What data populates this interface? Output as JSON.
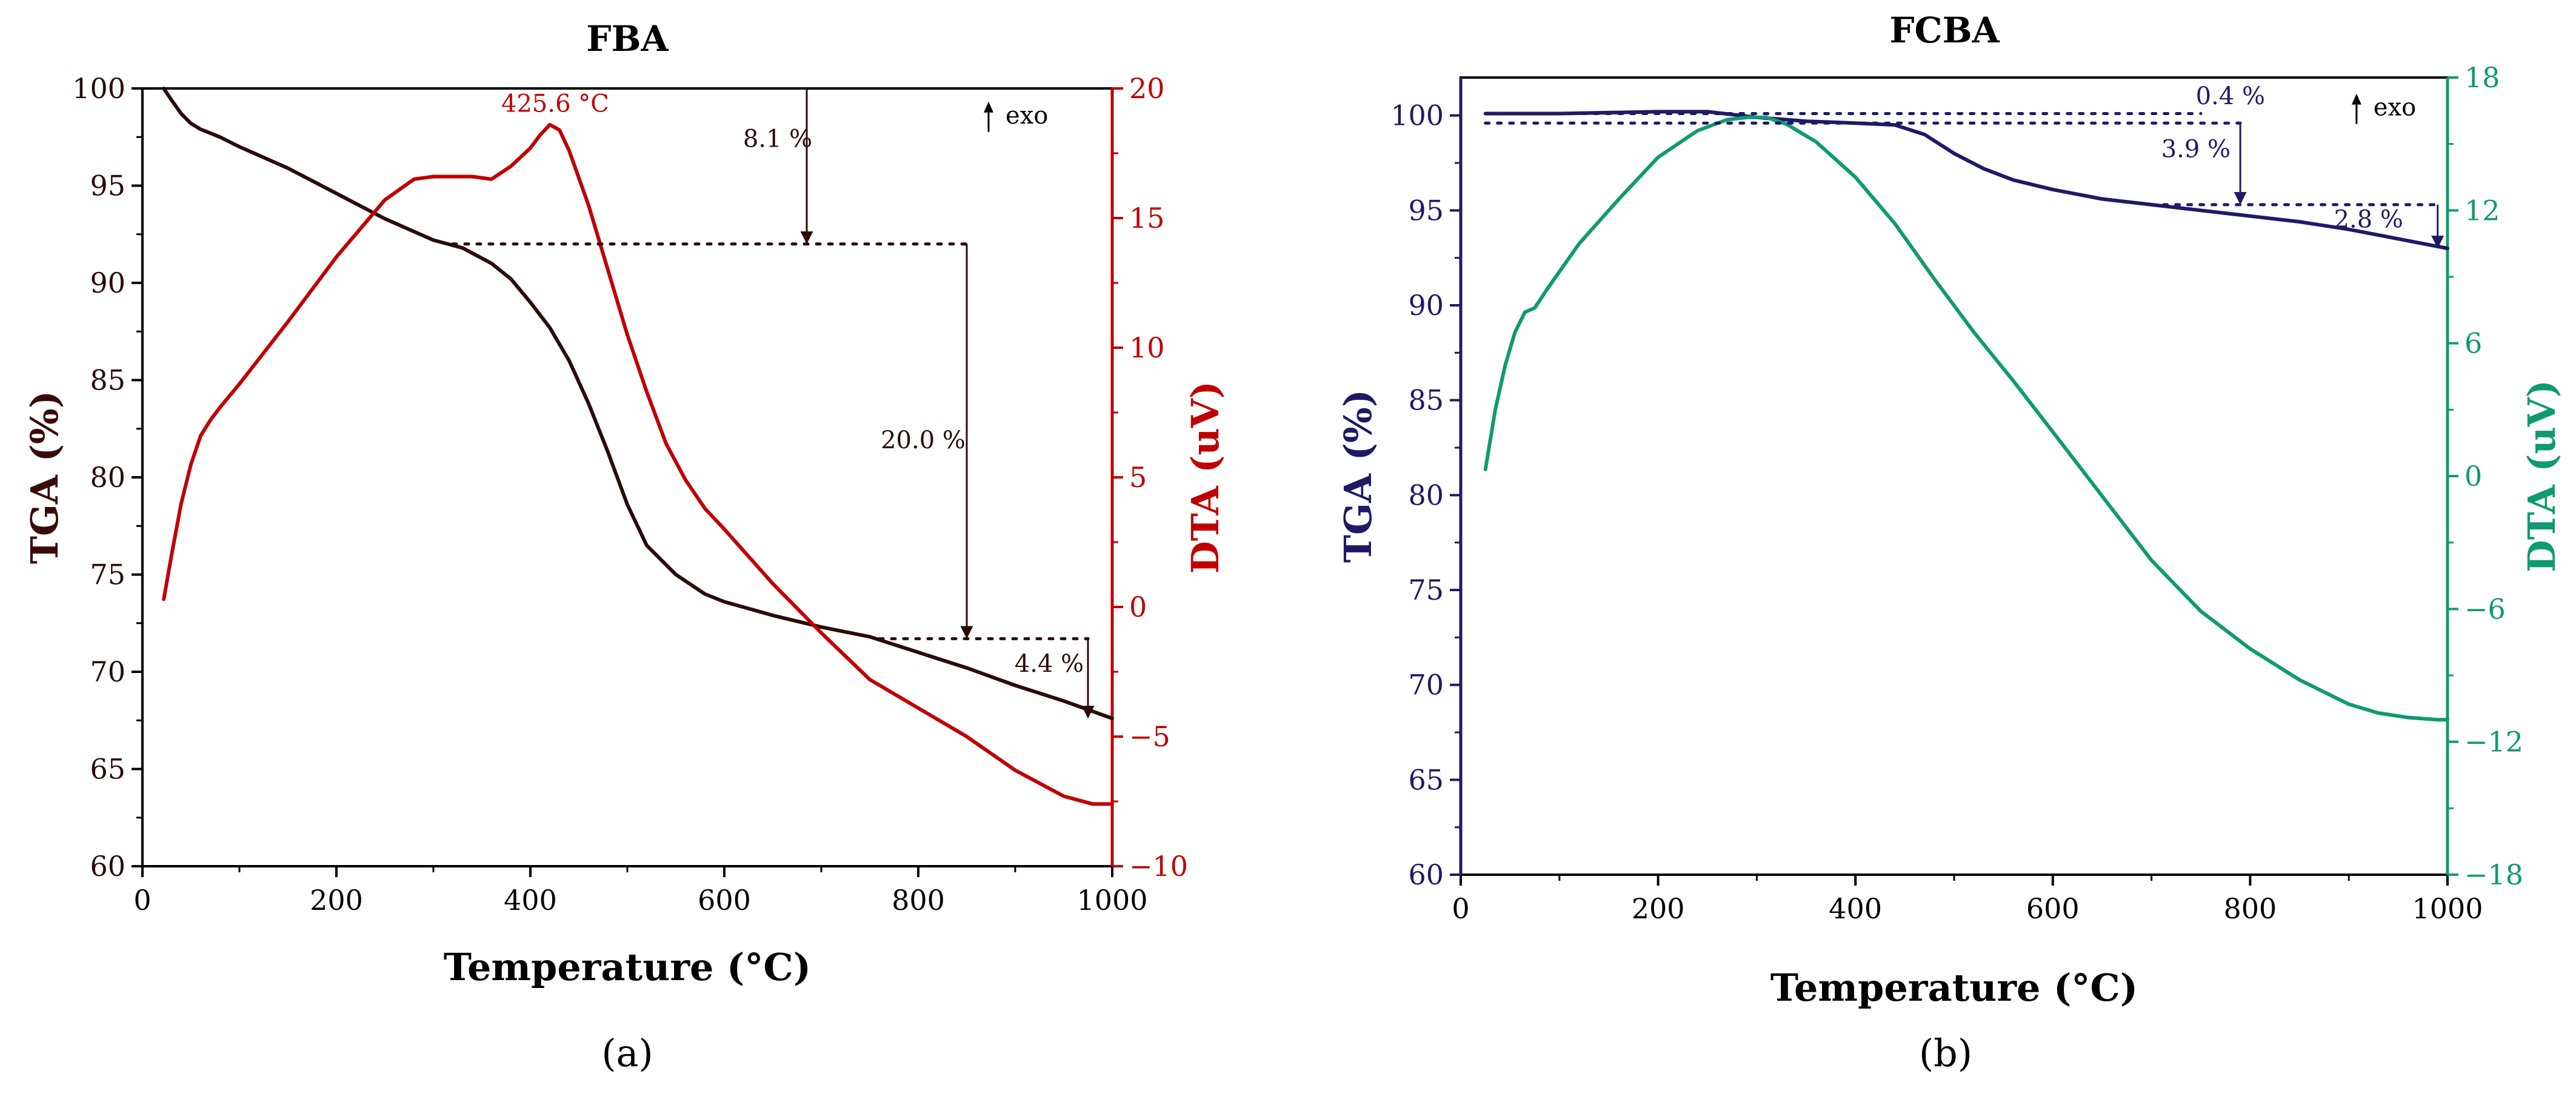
{
  "chart_data": [
    {
      "type": "line",
      "panel_label": "(a)",
      "title": "FBA",
      "xlabel": "Temperature (°C)",
      "ylabel_left": "TGA (%)",
      "ylabel_right": "DTA (uV)",
      "xlim": [
        0,
        1000
      ],
      "ylim_left": [
        60,
        100
      ],
      "ylim_right": [
        -10,
        20
      ],
      "xticks": [
        0,
        200,
        400,
        600,
        800,
        1000
      ],
      "yticks_left": [
        60,
        65,
        70,
        75,
        80,
        85,
        90,
        95,
        100
      ],
      "yticks_right": [
        -10,
        -5,
        0,
        5,
        10,
        15,
        20
      ],
      "colors": {
        "tga": "#2b0a0a",
        "dta": "#c00000",
        "axis_right": "#c00000",
        "left_label": "#3a0a0a"
      },
      "series": [
        {
          "name": "TGA",
          "axis": "left",
          "x": [
            22,
            30,
            40,
            50,
            60,
            80,
            100,
            150,
            200,
            250,
            300,
            330,
            360,
            380,
            400,
            420,
            440,
            460,
            480,
            500,
            520,
            550,
            580,
            600,
            650,
            700,
            750,
            800,
            850,
            900,
            950,
            1000
          ],
          "y": [
            100,
            99.4,
            98.7,
            98.2,
            97.9,
            97.5,
            97.0,
            95.9,
            94.6,
            93.3,
            92.2,
            91.8,
            91.0,
            90.2,
            89.0,
            87.7,
            86.0,
            83.8,
            81.3,
            78.6,
            76.5,
            75.0,
            74.0,
            73.6,
            72.9,
            72.3,
            71.8,
            71.0,
            70.2,
            69.3,
            68.5,
            67.6
          ]
        },
        {
          "name": "DTA",
          "axis": "right",
          "x": [
            22,
            30,
            40,
            50,
            60,
            70,
            80,
            100,
            150,
            200,
            250,
            280,
            300,
            340,
            360,
            380,
            400,
            410,
            420,
            430,
            440,
            460,
            480,
            500,
            520,
            540,
            560,
            580,
            600,
            650,
            700,
            750,
            800,
            850,
            900,
            950,
            980,
            1000
          ],
          "y": [
            0.3,
            2.0,
            4.0,
            5.5,
            6.6,
            7.2,
            7.7,
            8.6,
            11.0,
            13.5,
            15.7,
            16.5,
            16.6,
            16.6,
            16.5,
            17.0,
            17.7,
            18.2,
            18.6,
            18.4,
            17.6,
            15.5,
            13.0,
            10.5,
            8.3,
            6.3,
            4.9,
            3.8,
            3.0,
            0.9,
            -1.0,
            -2.8,
            -3.9,
            -5.0,
            -6.3,
            -7.3,
            -7.6,
            -7.6
          ]
        }
      ],
      "annotations": [
        {
          "label": "425.6 °C",
          "x": 425.6,
          "y": 19.1,
          "axis": "right",
          "color": "#c00000"
        },
        {
          "label": "8.1 %",
          "x": 655,
          "y": 97.0,
          "axis": "left"
        },
        {
          "label": "20.0 %",
          "x": 805,
          "y": 81.5,
          "axis": "left"
        },
        {
          "label": "4.4 %",
          "x": 935,
          "y": 70.0,
          "axis": "left"
        },
        {
          "label": "exo",
          "x": 890,
          "y": 98.2,
          "axis": "left",
          "arrow": true
        }
      ],
      "markers": {
        "dotted_lines": [
          {
            "x1": 320,
            "x2": 850,
            "y": 92.0
          },
          {
            "x1": 760,
            "x2": 975,
            "y": 71.7
          }
        ],
        "arrows": [
          {
            "x": 685,
            "y1": 100,
            "y2": 92.0
          },
          {
            "x": 850,
            "y1": 92.0,
            "y2": 71.7
          },
          {
            "x": 975,
            "y1": 71.7,
            "y2": 67.6
          }
        ]
      }
    },
    {
      "type": "line",
      "panel_label": "(b)",
      "title": "FCBA",
      "xlabel": "Temperature (°C)",
      "ylabel_left": "TGA (%)",
      "ylabel_right": "DTA (uV)",
      "xlim": [
        0,
        1000
      ],
      "ylim_left": [
        60,
        102
      ],
      "ylim_right": [
        -18,
        18
      ],
      "xticks": [
        0,
        200,
        400,
        600,
        800,
        1000
      ],
      "yticks_left": [
        60,
        65,
        70,
        75,
        80,
        85,
        90,
        95,
        100
      ],
      "yticks_right": [
        -18,
        -12,
        -6,
        0,
        6,
        12,
        18
      ],
      "colors": {
        "tga": "#1e1a66",
        "dta": "#0f9a72",
        "axis_left": "#1e1a66",
        "axis_right": "#0f9a72"
      },
      "series": [
        {
          "name": "TGA",
          "axis": "left",
          "x": [
            25,
            100,
            200,
            250,
            300,
            350,
            400,
            440,
            470,
            500,
            530,
            560,
            600,
            650,
            700,
            750,
            800,
            850,
            900,
            950,
            1000
          ],
          "y": [
            100.1,
            100.1,
            100.2,
            100.2,
            99.9,
            99.7,
            99.6,
            99.5,
            99.0,
            98.0,
            97.2,
            96.6,
            96.1,
            95.6,
            95.3,
            95.0,
            94.7,
            94.4,
            94.0,
            93.5,
            93.0
          ]
        },
        {
          "name": "DTA",
          "axis": "right",
          "x": [
            25,
            35,
            45,
            55,
            65,
            70,
            75,
            90,
            120,
            160,
            200,
            240,
            270,
            290,
            310,
            330,
            360,
            400,
            440,
            480,
            520,
            560,
            600,
            650,
            700,
            750,
            800,
            850,
            900,
            930,
            960,
            990,
            1000
          ],
          "y": [
            0.3,
            3.0,
            5.0,
            6.5,
            7.4,
            7.5,
            7.6,
            8.6,
            10.5,
            12.5,
            14.4,
            15.6,
            16.1,
            16.2,
            16.2,
            15.9,
            15.1,
            13.5,
            11.4,
            8.9,
            6.5,
            4.3,
            2.0,
            -0.9,
            -3.8,
            -6.1,
            -7.8,
            -9.2,
            -10.3,
            -10.7,
            -10.9,
            -11.0,
            -11.0
          ]
        }
      ],
      "annotations": [
        {
          "label": "0.4 %",
          "x": 780,
          "y": 100.6,
          "axis": "left"
        },
        {
          "label": "3.9 %",
          "x": 745,
          "y": 97.8,
          "axis": "left"
        },
        {
          "label": "2.8 %",
          "x": 920,
          "y": 94.1,
          "axis": "left"
        },
        {
          "label": "exo",
          "x": 925,
          "y": 100.0,
          "axis": "left",
          "arrow": true
        }
      ],
      "markers": {
        "dotted_lines": [
          {
            "x1": 25,
            "x2": 750,
            "y": 100.1
          },
          {
            "x1": 25,
            "x2": 790,
            "y": 99.6
          },
          {
            "x1": 700,
            "x2": 990,
            "y": 95.3
          }
        ],
        "arrows": [
          {
            "x": 790,
            "y1": 99.6,
            "y2": 95.3
          },
          {
            "x": 990,
            "y1": 95.3,
            "y2": 93.0
          }
        ]
      }
    }
  ]
}
